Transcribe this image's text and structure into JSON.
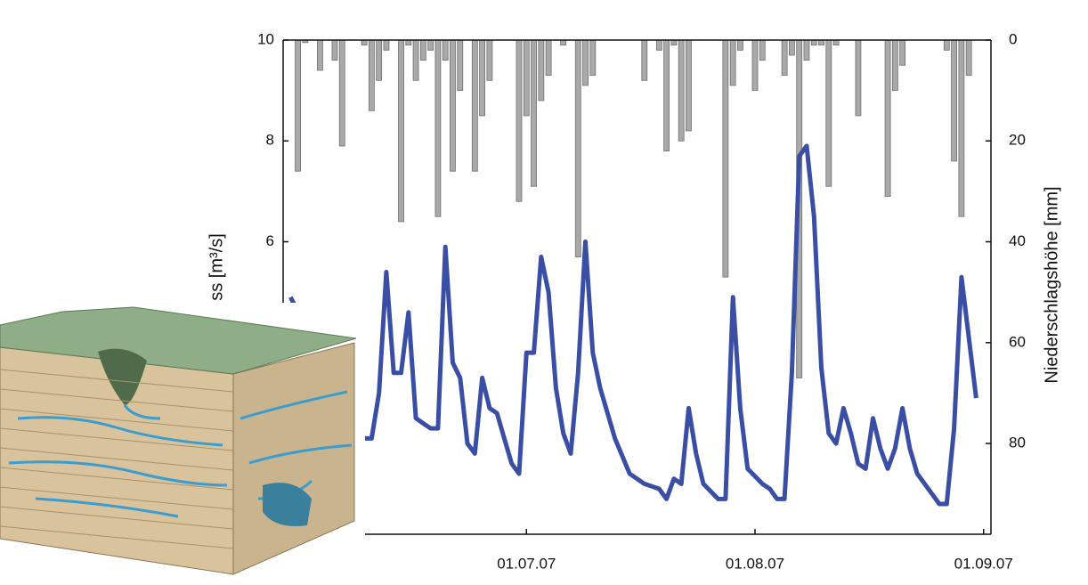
{
  "chart_data": {
    "type": "combo",
    "y_label": "ss [m³/s]",
    "y2_label": "Niederschlagshöhe [mm]",
    "xlim": [
      "2007-05-29",
      "2007-09-02"
    ],
    "xticks": [
      {
        "value": "2007-07-01",
        "label": "01.07.07"
      },
      {
        "value": "2007-08-01",
        "label": "01.08.07"
      },
      {
        "value": "2007-09-01",
        "label": "01.09.07"
      }
    ],
    "ylim": [
      0.2,
      10
    ],
    "yticks": [
      6,
      8,
      10
    ],
    "y2lim": [
      0,
      98
    ],
    "y2ticks": [
      0,
      20,
      40,
      60,
      80
    ],
    "y2_inverted": true,
    "series": [
      {
        "type": "bar",
        "axis": "y2",
        "color": "#a9a9a9",
        "x": [
          "2007-05-31",
          "2007-06-01",
          "2007-06-03",
          "2007-06-05",
          "2007-06-06",
          "2007-06-09",
          "2007-06-10",
          "2007-06-11",
          "2007-06-12",
          "2007-06-14",
          "2007-06-15",
          "2007-06-16",
          "2007-06-17",
          "2007-06-18",
          "2007-06-19",
          "2007-06-20",
          "2007-06-21",
          "2007-06-22",
          "2007-06-24",
          "2007-06-25",
          "2007-06-26",
          "2007-06-30",
          "2007-07-01",
          "2007-07-02",
          "2007-07-03",
          "2007-07-04",
          "2007-07-06",
          "2007-07-08",
          "2007-07-09",
          "2007-07-10",
          "2007-07-17",
          "2007-07-19",
          "2007-07-20",
          "2007-07-21",
          "2007-07-22",
          "2007-07-23",
          "2007-07-28",
          "2007-07-29",
          "2007-07-30",
          "2007-08-01",
          "2007-08-02",
          "2007-08-05",
          "2007-08-06",
          "2007-08-07",
          "2007-08-08",
          "2007-08-09",
          "2007-08-10",
          "2007-08-11",
          "2007-08-12",
          "2007-08-15",
          "2007-08-19",
          "2007-08-20",
          "2007-08-21",
          "2007-08-27",
          "2007-08-28",
          "2007-08-29",
          "2007-08-30"
        ],
        "values": [
          26,
          0.5,
          6,
          4,
          21,
          1,
          14,
          8,
          2,
          36,
          1,
          8,
          4,
          2,
          35,
          4,
          26,
          10,
          26,
          15,
          8,
          32,
          15,
          29,
          12,
          7,
          1,
          43,
          9,
          7,
          8,
          2,
          22,
          1,
          20,
          18,
          47,
          9,
          2,
          10,
          4,
          7,
          3,
          67,
          4,
          1,
          1,
          29,
          1,
          15,
          31,
          10,
          5,
          2,
          24,
          35,
          7
        ]
      },
      {
        "type": "line",
        "axis": "y",
        "color": "#3a4ea3",
        "x": [
          "2007-05-30",
          "2007-06-09",
          "2007-06-10",
          "2007-06-11",
          "2007-06-12",
          "2007-06-13",
          "2007-06-14",
          "2007-06-15",
          "2007-06-16",
          "2007-06-17",
          "2007-06-18",
          "2007-06-19",
          "2007-06-20",
          "2007-06-21",
          "2007-06-22",
          "2007-06-23",
          "2007-06-24",
          "2007-06-25",
          "2007-06-26",
          "2007-06-27",
          "2007-06-28",
          "2007-06-29",
          "2007-06-30",
          "2007-07-01",
          "2007-07-02",
          "2007-07-03",
          "2007-07-04",
          "2007-07-05",
          "2007-07-06",
          "2007-07-07",
          "2007-07-08",
          "2007-07-09",
          "2007-07-10",
          "2007-07-11",
          "2007-07-13",
          "2007-07-15",
          "2007-07-17",
          "2007-07-19",
          "2007-07-20",
          "2007-07-21",
          "2007-07-22",
          "2007-07-23",
          "2007-07-24",
          "2007-07-25",
          "2007-07-27",
          "2007-07-28",
          "2007-07-29",
          "2007-07-30",
          "2007-07-31",
          "2007-08-02",
          "2007-08-03",
          "2007-08-04",
          "2007-08-05",
          "2007-08-06",
          "2007-08-07",
          "2007-08-08",
          "2007-08-09",
          "2007-08-10",
          "2007-08-11",
          "2007-08-12",
          "2007-08-13",
          "2007-08-14",
          "2007-08-15",
          "2007-08-16",
          "2007-08-17",
          "2007-08-18",
          "2007-08-19",
          "2007-08-20",
          "2007-08-21",
          "2007-08-22",
          "2007-08-23",
          "2007-08-25",
          "2007-08-26",
          "2007-08-27",
          "2007-08-28",
          "2007-08-29",
          "2007-08-31"
        ],
        "values": [
          4.9,
          2.1,
          2.1,
          3.0,
          5.4,
          3.4,
          3.4,
          4.6,
          2.5,
          2.4,
          2.3,
          2.3,
          5.9,
          3.6,
          3.3,
          2.0,
          1.8,
          3.3,
          2.7,
          2.6,
          2.1,
          1.6,
          1.4,
          3.8,
          3.8,
          5.7,
          5.0,
          3.1,
          2.2,
          1.8,
          3.4,
          6.0,
          3.8,
          3.1,
          2.1,
          1.4,
          1.2,
          1.1,
          0.9,
          1.3,
          1.2,
          2.7,
          1.8,
          1.2,
          0.9,
          0.9,
          4.9,
          2.7,
          1.5,
          1.2,
          1.1,
          0.9,
          0.9,
          3.4,
          7.7,
          7.9,
          6.5,
          3.5,
          2.2,
          2.0,
          2.7,
          2.2,
          1.6,
          1.5,
          2.5,
          1.9,
          1.5,
          1.9,
          2.7,
          1.9,
          1.4,
          1.0,
          0.8,
          0.8,
          2.3,
          5.3,
          2.9
        ]
      }
    ]
  }
}
